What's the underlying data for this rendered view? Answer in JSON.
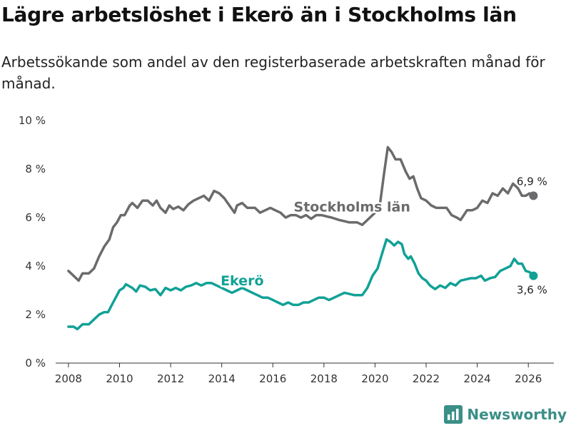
{
  "header": {
    "title": "Lägre arbetslöshet i Ekerö än i Stockholms län",
    "subtitle": "Arbetssökande som andel av den registerbaserade arbetskraften månad för månad."
  },
  "brand": {
    "name": "Newsworthy"
  },
  "chart_data": {
    "type": "line",
    "title": "Lägre arbetslöshet i Ekerö än i Stockholms län",
    "subtitle": "Arbetssökande som andel av den registerbaserade arbetskraften månad för månad.",
    "xlabel": "",
    "ylabel": "",
    "xlim": [
      2007.5,
      2027.0
    ],
    "ylim": [
      0,
      10
    ],
    "xticks": [
      2008,
      2010,
      2012,
      2014,
      2016,
      2018,
      2020,
      2022,
      2024,
      2026
    ],
    "xtick_labels": [
      "2008",
      "2010",
      "2012",
      "2014",
      "2016",
      "2018",
      "2020",
      "2022",
      "2024",
      "2026"
    ],
    "yticks": [
      0,
      2,
      4,
      6,
      8,
      10
    ],
    "ytick_labels": [
      "0 %",
      "2 %",
      "4 %",
      "6 %",
      "8 %",
      "10 %"
    ],
    "grid": "none",
    "series": [
      {
        "name": "Stockholms län",
        "color": "#6b6b6e",
        "end_label": "6,9 %",
        "points": [
          [
            2008.0,
            3.8
          ],
          [
            2008.2,
            3.6
          ],
          [
            2008.4,
            3.4
          ],
          [
            2008.55,
            3.7
          ],
          [
            2008.8,
            3.7
          ],
          [
            2009.0,
            3.9
          ],
          [
            2009.2,
            4.4
          ],
          [
            2009.4,
            4.8
          ],
          [
            2009.6,
            5.1
          ],
          [
            2009.75,
            5.6
          ],
          [
            2009.9,
            5.8
          ],
          [
            2010.05,
            6.1
          ],
          [
            2010.2,
            6.1
          ],
          [
            2010.4,
            6.5
          ],
          [
            2010.5,
            6.6
          ],
          [
            2010.7,
            6.4
          ],
          [
            2010.9,
            6.7
          ],
          [
            2011.1,
            6.7
          ],
          [
            2011.3,
            6.5
          ],
          [
            2011.45,
            6.7
          ],
          [
            2011.6,
            6.4
          ],
          [
            2011.8,
            6.2
          ],
          [
            2011.95,
            6.5
          ],
          [
            2012.1,
            6.35
          ],
          [
            2012.3,
            6.45
          ],
          [
            2012.5,
            6.3
          ],
          [
            2012.7,
            6.55
          ],
          [
            2012.9,
            6.7
          ],
          [
            2013.1,
            6.8
          ],
          [
            2013.3,
            6.9
          ],
          [
            2013.5,
            6.7
          ],
          [
            2013.7,
            7.1
          ],
          [
            2013.9,
            7.0
          ],
          [
            2014.1,
            6.8
          ],
          [
            2014.3,
            6.5
          ],
          [
            2014.5,
            6.2
          ],
          [
            2014.6,
            6.5
          ],
          [
            2014.8,
            6.6
          ],
          [
            2015.0,
            6.4
          ],
          [
            2015.3,
            6.4
          ],
          [
            2015.5,
            6.2
          ],
          [
            2015.7,
            6.3
          ],
          [
            2015.9,
            6.4
          ],
          [
            2016.1,
            6.3
          ],
          [
            2016.3,
            6.2
          ],
          [
            2016.5,
            6.0
          ],
          [
            2016.7,
            6.1
          ],
          [
            2016.9,
            6.1
          ],
          [
            2017.1,
            6.0
          ],
          [
            2017.3,
            6.1
          ],
          [
            2017.5,
            5.95
          ],
          [
            2017.7,
            6.1
          ],
          [
            2017.9,
            6.1
          ],
          [
            2018.1,
            6.05
          ],
          [
            2018.3,
            6.0
          ],
          [
            2018.6,
            5.9
          ],
          [
            2018.8,
            5.85
          ],
          [
            2019.0,
            5.8
          ],
          [
            2019.3,
            5.8
          ],
          [
            2019.5,
            5.7
          ],
          [
            2019.8,
            6.0
          ],
          [
            2020.0,
            6.2
          ],
          [
            2020.2,
            6.6
          ],
          [
            2020.35,
            7.8
          ],
          [
            2020.5,
            8.9
          ],
          [
            2020.65,
            8.7
          ],
          [
            2020.8,
            8.4
          ],
          [
            2021.0,
            8.4
          ],
          [
            2021.2,
            7.9
          ],
          [
            2021.35,
            7.6
          ],
          [
            2021.5,
            7.7
          ],
          [
            2021.65,
            7.2
          ],
          [
            2021.8,
            6.8
          ],
          [
            2022.0,
            6.7
          ],
          [
            2022.2,
            6.5
          ],
          [
            2022.4,
            6.4
          ],
          [
            2022.6,
            6.4
          ],
          [
            2022.8,
            6.4
          ],
          [
            2023.0,
            6.1
          ],
          [
            2023.2,
            6.0
          ],
          [
            2023.35,
            5.9
          ],
          [
            2023.6,
            6.3
          ],
          [
            2023.8,
            6.3
          ],
          [
            2024.0,
            6.4
          ],
          [
            2024.2,
            6.7
          ],
          [
            2024.4,
            6.6
          ],
          [
            2024.6,
            7.0
          ],
          [
            2024.8,
            6.9
          ],
          [
            2025.0,
            7.2
          ],
          [
            2025.2,
            7.0
          ],
          [
            2025.4,
            7.4
          ],
          [
            2025.6,
            7.2
          ],
          [
            2025.75,
            6.9
          ],
          [
            2025.9,
            6.9
          ],
          [
            2026.05,
            7.0
          ],
          [
            2026.2,
            6.9
          ]
        ]
      },
      {
        "name": "Ekerö",
        "color": "#11a196",
        "end_label": "3,6 %",
        "points": [
          [
            2008.0,
            1.5
          ],
          [
            2008.2,
            1.5
          ],
          [
            2008.35,
            1.4
          ],
          [
            2008.55,
            1.6
          ],
          [
            2008.8,
            1.6
          ],
          [
            2009.0,
            1.8
          ],
          [
            2009.2,
            2.0
          ],
          [
            2009.4,
            2.1
          ],
          [
            2009.55,
            2.1
          ],
          [
            2009.75,
            2.5
          ],
          [
            2010.0,
            3.0
          ],
          [
            2010.15,
            3.1
          ],
          [
            2010.25,
            3.25
          ],
          [
            2010.5,
            3.1
          ],
          [
            2010.65,
            2.95
          ],
          [
            2010.8,
            3.2
          ],
          [
            2011.0,
            3.15
          ],
          [
            2011.2,
            3.0
          ],
          [
            2011.4,
            3.05
          ],
          [
            2011.6,
            2.8
          ],
          [
            2011.8,
            3.1
          ],
          [
            2012.0,
            3.0
          ],
          [
            2012.2,
            3.1
          ],
          [
            2012.4,
            3.0
          ],
          [
            2012.6,
            3.15
          ],
          [
            2012.8,
            3.2
          ],
          [
            2013.0,
            3.3
          ],
          [
            2013.2,
            3.2
          ],
          [
            2013.4,
            3.3
          ],
          [
            2013.6,
            3.3
          ],
          [
            2013.8,
            3.2
          ],
          [
            2014.0,
            3.1
          ],
          [
            2014.2,
            3.0
          ],
          [
            2014.4,
            2.9
          ],
          [
            2014.6,
            3.0
          ],
          [
            2014.8,
            3.1
          ],
          [
            2015.0,
            3.0
          ],
          [
            2015.2,
            2.9
          ],
          [
            2015.4,
            2.8
          ],
          [
            2015.6,
            2.7
          ],
          [
            2015.8,
            2.7
          ],
          [
            2016.0,
            2.6
          ],
          [
            2016.2,
            2.5
          ],
          [
            2016.4,
            2.4
          ],
          [
            2016.6,
            2.5
          ],
          [
            2016.8,
            2.4
          ],
          [
            2017.0,
            2.4
          ],
          [
            2017.2,
            2.5
          ],
          [
            2017.4,
            2.5
          ],
          [
            2017.6,
            2.6
          ],
          [
            2017.8,
            2.7
          ],
          [
            2018.0,
            2.7
          ],
          [
            2018.2,
            2.6
          ],
          [
            2018.4,
            2.7
          ],
          [
            2018.6,
            2.8
          ],
          [
            2018.8,
            2.9
          ],
          [
            2019.0,
            2.85
          ],
          [
            2019.2,
            2.8
          ],
          [
            2019.5,
            2.8
          ],
          [
            2019.7,
            3.1
          ],
          [
            2019.9,
            3.6
          ],
          [
            2020.1,
            3.9
          ],
          [
            2020.3,
            4.6
          ],
          [
            2020.45,
            5.1
          ],
          [
            2020.6,
            5.0
          ],
          [
            2020.75,
            4.85
          ],
          [
            2020.9,
            5.0
          ],
          [
            2021.05,
            4.9
          ],
          [
            2021.15,
            4.5
          ],
          [
            2021.3,
            4.3
          ],
          [
            2021.4,
            4.4
          ],
          [
            2021.55,
            4.1
          ],
          [
            2021.7,
            3.7
          ],
          [
            2021.85,
            3.5
          ],
          [
            2022.0,
            3.4
          ],
          [
            2022.15,
            3.2
          ],
          [
            2022.35,
            3.05
          ],
          [
            2022.55,
            3.2
          ],
          [
            2022.75,
            3.1
          ],
          [
            2022.95,
            3.3
          ],
          [
            2023.15,
            3.2
          ],
          [
            2023.35,
            3.4
          ],
          [
            2023.55,
            3.45
          ],
          [
            2023.75,
            3.5
          ],
          [
            2023.95,
            3.5
          ],
          [
            2024.15,
            3.6
          ],
          [
            2024.3,
            3.4
          ],
          [
            2024.5,
            3.5
          ],
          [
            2024.7,
            3.55
          ],
          [
            2024.9,
            3.8
          ],
          [
            2025.1,
            3.9
          ],
          [
            2025.3,
            4.0
          ],
          [
            2025.45,
            4.3
          ],
          [
            2025.6,
            4.1
          ],
          [
            2025.75,
            4.1
          ],
          [
            2025.9,
            3.8
          ],
          [
            2026.05,
            3.75
          ],
          [
            2026.2,
            3.6
          ]
        ]
      }
    ],
    "annotations": [
      {
        "text": "Stockholms län",
        "series": "Stockholms län",
        "x": 2019.1,
        "y": 6.25
      },
      {
        "text": "Ekerö",
        "series": "Ekerö",
        "x": 2014.8,
        "y": 3.2
      }
    ]
  }
}
